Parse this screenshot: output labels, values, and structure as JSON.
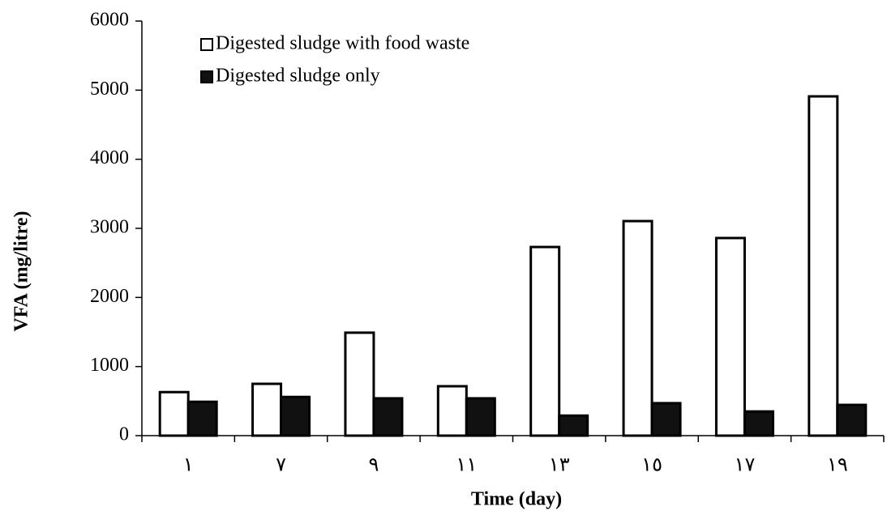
{
  "chart_data": {
    "type": "bar",
    "x_label": "Time (day)",
    "y_label": "VFA (mg/litre)",
    "categories": [
      "١",
      "٧",
      "٩",
      "١١",
      "١٣",
      "١٥",
      "١٧",
      "١٩"
    ],
    "series": [
      {
        "name": "Digested sludge with food waste",
        "color": "#ffffff",
        "values": [
          630,
          750,
          1490,
          715,
          2730,
          3105,
          2860,
          4910
        ]
      },
      {
        "name": "Digested sludge only",
        "color": "#111111",
        "values": [
          490,
          560,
          540,
          540,
          290,
          470,
          350,
          445
        ]
      }
    ],
    "ylim": [
      0,
      6000
    ],
    "yticks": [
      0,
      1000,
      2000,
      3000,
      4000,
      5000,
      6000
    ],
    "grid": false
  }
}
